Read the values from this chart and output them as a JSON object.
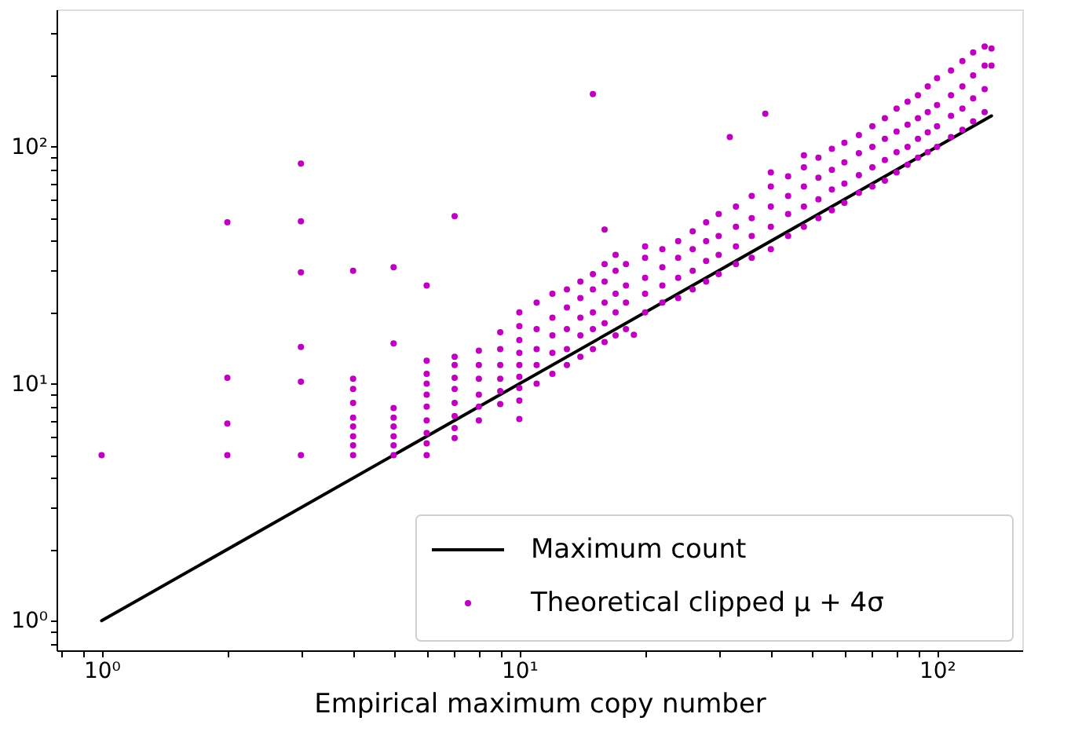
{
  "chart_data": {
    "type": "scatter",
    "xlabel": "Empirical maximum copy number",
    "log": "xy",
    "grid": false,
    "legend": "bottom right",
    "xlim": [
      0.78,
      160
    ],
    "ylim": [
      0.75,
      380
    ],
    "xticks": [
      {
        "value": 0.8,
        "label": null
      },
      {
        "value": 0.9,
        "label": null
      },
      {
        "value": 1,
        "label": "10⁰"
      },
      {
        "value": 2,
        "label": null
      },
      {
        "value": 3,
        "label": null
      },
      {
        "value": 4,
        "label": null
      },
      {
        "value": 5,
        "label": null
      },
      {
        "value": 6,
        "label": null
      },
      {
        "value": 7,
        "label": null
      },
      {
        "value": 8,
        "label": null
      },
      {
        "value": 9,
        "label": null
      },
      {
        "value": 10,
        "label": "10¹"
      },
      {
        "value": 20,
        "label": null
      },
      {
        "value": 30,
        "label": null
      },
      {
        "value": 40,
        "label": null
      },
      {
        "value": 50,
        "label": null
      },
      {
        "value": 60,
        "label": null
      },
      {
        "value": 70,
        "label": null
      },
      {
        "value": 80,
        "label": null
      },
      {
        "value": 90,
        "label": null
      },
      {
        "value": 100,
        "label": "10²"
      }
    ],
    "yticks": [
      {
        "value": 0.8,
        "label": null
      },
      {
        "value": 0.9,
        "label": null
      },
      {
        "value": 1,
        "label": "10⁰"
      },
      {
        "value": 2,
        "label": null
      },
      {
        "value": 3,
        "label": null
      },
      {
        "value": 4,
        "label": null
      },
      {
        "value": 5,
        "label": null
      },
      {
        "value": 6,
        "label": null
      },
      {
        "value": 7,
        "label": null
      },
      {
        "value": 8,
        "label": null
      },
      {
        "value": 9,
        "label": null
      },
      {
        "value": 10,
        "label": "10¹"
      },
      {
        "value": 20,
        "label": null
      },
      {
        "value": 30,
        "label": null
      },
      {
        "value": 40,
        "label": null
      },
      {
        "value": 50,
        "label": null
      },
      {
        "value": 60,
        "label": null
      },
      {
        "value": 70,
        "label": null
      },
      {
        "value": 80,
        "label": null
      },
      {
        "value": 90,
        "label": null
      },
      {
        "value": 100,
        "label": "10²"
      },
      {
        "value": 200,
        "label": null
      },
      {
        "value": 300,
        "label": null
      }
    ],
    "series": [
      {
        "name": "Maximum count",
        "type": "line",
        "color": "#000000",
        "line_style": "solid",
        "x": [
          1,
          135
        ],
        "values": [
          1,
          135
        ]
      },
      {
        "name": "Theoretical clipped μ + 4σ",
        "color": "#bf00bf",
        "marker": "circle",
        "x": [
          1,
          2,
          2,
          2,
          2,
          3,
          3,
          3,
          3,
          3,
          3,
          4,
          4,
          4,
          4,
          4,
          4,
          4,
          4,
          4,
          5,
          5,
          5,
          5,
          5,
          5,
          5,
          5,
          6,
          6,
          6,
          6,
          6,
          6,
          6,
          6,
          6,
          6,
          7,
          7,
          7,
          7,
          7,
          7,
          7,
          7,
          7,
          8,
          8,
          8,
          8,
          8,
          8,
          9,
          9,
          9,
          9,
          9,
          9,
          10,
          10,
          10,
          10,
          10,
          10,
          10,
          10,
          10,
          11,
          11,
          11,
          11,
          11,
          12,
          12,
          12,
          12,
          12,
          13,
          13,
          13,
          13,
          13,
          14,
          14,
          14,
          14,
          14,
          15,
          15,
          15,
          15,
          15,
          15,
          16,
          16,
          16,
          16,
          16,
          16,
          17,
          17,
          17,
          17,
          17,
          18,
          18,
          18,
          18,
          18.8,
          20,
          20,
          20,
          20,
          20,
          22,
          22,
          22,
          22,
          24,
          24,
          24,
          24,
          26,
          26,
          26,
          26,
          28,
          28,
          28,
          28,
          30,
          30,
          30,
          30,
          31.9,
          33,
          33,
          33,
          33,
          36,
          36,
          36,
          36,
          38.8,
          40,
          40,
          40,
          40,
          40,
          44,
          44,
          44,
          44,
          48,
          48,
          48,
          48,
          48,
          52,
          52,
          52,
          52,
          56,
          56,
          56,
          56,
          60,
          60,
          60,
          60,
          65,
          65,
          65,
          65,
          70,
          70,
          70,
          70,
          75,
          75,
          75,
          75,
          80,
          80,
          80,
          80,
          85,
          85,
          85,
          85,
          90,
          90,
          90,
          90,
          95,
          95,
          95,
          95,
          100,
          100,
          100,
          100,
          108,
          108,
          108,
          108,
          115,
          115,
          115,
          115,
          122,
          122,
          122,
          122,
          130,
          130,
          130,
          130,
          135,
          135
        ],
        "values": [
          5,
          5,
          6.8,
          10.6,
          48,
          5,
          10.2,
          14.3,
          29.5,
          48.5,
          85,
          5,
          5.5,
          6,
          6.6,
          7.2,
          8.3,
          9.5,
          10.5,
          30,
          5,
          5.5,
          6,
          6.6,
          7.2,
          7.9,
          14.8,
          31,
          5,
          5.6,
          6.2,
          7,
          8,
          9,
          10,
          11,
          12.5,
          26,
          5.9,
          6.5,
          7.3,
          8.3,
          9.5,
          10.6,
          12,
          13,
          51,
          7,
          8,
          9,
          10.5,
          12,
          13.8,
          8.2,
          9.3,
          10.5,
          12,
          14,
          16.5,
          7.1,
          8.5,
          9.6,
          10.7,
          12,
          13.5,
          15.3,
          17.5,
          20,
          10,
          12,
          14,
          17,
          22,
          11,
          13.5,
          16,
          19,
          24,
          12,
          14,
          17,
          21,
          25,
          13,
          16,
          19,
          23,
          27,
          14,
          17,
          20,
          25,
          29,
          167,
          15,
          18,
          22,
          27,
          32,
          44.8,
          16,
          20,
          24,
          30,
          35,
          17,
          22,
          26,
          32,
          16.1,
          20,
          24,
          28,
          34,
          38,
          22,
          26,
          31,
          37,
          23,
          28,
          34,
          40,
          25,
          30,
          37,
          44,
          27,
          33,
          40,
          48,
          29,
          35,
          42,
          52,
          110,
          32,
          38,
          46,
          56,
          34,
          42,
          50,
          62,
          138,
          37,
          46,
          56,
          68,
          78,
          42,
          52,
          62,
          75,
          46,
          56,
          68,
          82,
          92,
          50,
          60,
          74,
          90,
          54,
          66,
          80,
          98,
          58,
          70,
          86,
          104,
          64,
          76,
          94,
          112,
          68,
          82,
          100,
          122,
          72,
          88,
          108,
          132,
          78,
          95,
          116,
          145,
          84,
          100,
          124,
          155,
          90,
          108,
          132,
          165,
          95,
          115,
          140,
          180,
          100,
          122,
          150,
          195,
          110,
          135,
          165,
          210,
          118,
          145,
          180,
          230,
          128,
          160,
          200,
          250,
          140,
          175,
          220,
          265,
          220,
          260
        ]
      }
    ]
  }
}
